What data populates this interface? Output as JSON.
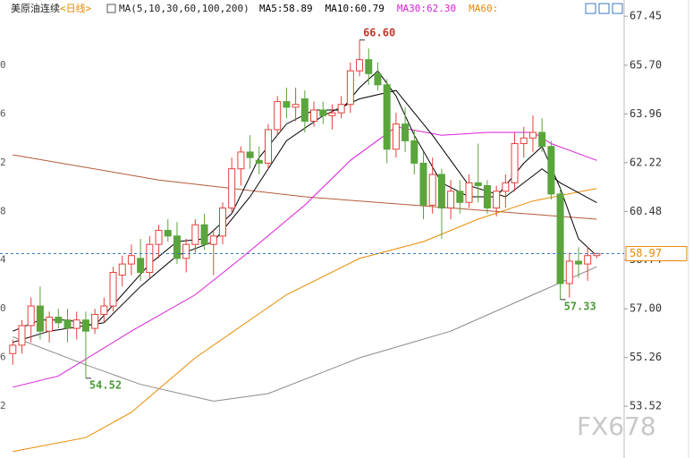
{
  "header": {
    "symbol": "美原油连续",
    "period": "<日线>",
    "ma_params": "MA(5,10,30,60,100,200)",
    "ma_values": [
      {
        "label": "MA5:58.89",
        "color": "#000000"
      },
      {
        "label": "MA10:60.79",
        "color": "#000000"
      },
      {
        "label": "MA30:62.30",
        "color": "#d81ed8"
      },
      {
        "label": "MA60:",
        "color": "#e88a00"
      }
    ]
  },
  "chart_data": {
    "type": "candlestick",
    "up_color": "#e5403a",
    "down_color": "#5aa53c",
    "open": [
      55.4,
      55.7,
      56.4,
      57.1,
      56.2,
      56.7,
      56.6,
      56.3,
      56.6,
      56.3,
      56.8,
      57.1,
      58.2,
      58.6,
      58.8,
      58.3,
      59.3,
      59.8,
      59.6,
      58.8,
      59.3,
      60.0,
      59.3,
      59.6,
      60.6,
      62.0,
      62.6,
      62.3,
      62.2,
      63.4,
      64.4,
      64.2,
      64.5,
      63.7,
      64.1,
      63.9,
      64.0,
      64.3,
      65.5,
      65.9,
      65.4,
      65.0,
      62.7,
      63.6,
      63.0,
      62.2,
      60.7,
      61.8,
      60.6,
      61.2,
      60.8,
      61.5,
      61.4,
      60.6,
      61.2,
      61.5,
      62.9,
      63.1,
      63.3,
      62.8,
      61.1,
      57.9,
      58.7,
      58.6,
      58.9
    ],
    "high": [
      55.9,
      56.6,
      57.4,
      57.8,
      56.9,
      57.0,
      57.0,
      56.9,
      56.9,
      57.0,
      57.4,
      58.5,
      58.9,
      59.3,
      59.5,
      59.6,
      60.0,
      60.2,
      60.1,
      59.5,
      60.2,
      60.4,
      59.8,
      60.8,
      62.4,
      62.8,
      63.2,
      62.8,
      63.6,
      64.6,
      64.9,
      64.9,
      64.8,
      64.4,
      64.4,
      64.3,
      64.6,
      65.8,
      66.6,
      66.3,
      65.8,
      65.2,
      64.0,
      64.2,
      63.4,
      62.6,
      62.4,
      62.0,
      61.6,
      61.6,
      61.8,
      62.9,
      61.6,
      61.4,
      61.8,
      63.3,
      63.5,
      63.9,
      63.8,
      63.0,
      61.3,
      59.0,
      59.2,
      59.2,
      59.0
    ],
    "low": [
      55.0,
      55.4,
      55.8,
      55.9,
      55.8,
      56.3,
      55.8,
      55.9,
      54.52,
      56.1,
      56.5,
      56.9,
      57.8,
      58.2,
      58.0,
      58.1,
      58.8,
      59.4,
      58.6,
      58.3,
      59.0,
      59.1,
      58.2,
      59.3,
      60.4,
      61.4,
      62.0,
      61.8,
      62.0,
      63.2,
      63.8,
      63.7,
      63.3,
      63.5,
      63.6,
      63.4,
      63.8,
      64.0,
      65.3,
      65.0,
      64.8,
      62.2,
      62.4,
      62.6,
      61.8,
      60.2,
      60.4,
      59.5,
      60.2,
      60.4,
      60.6,
      60.8,
      60.4,
      60.3,
      60.6,
      61.2,
      62.4,
      62.6,
      62.6,
      60.9,
      57.33,
      57.4,
      58.1,
      58.0,
      58.8
    ],
    "close": [
      55.7,
      56.4,
      57.1,
      56.2,
      56.7,
      56.5,
      56.3,
      56.6,
      56.2,
      56.8,
      57.1,
      58.3,
      58.6,
      58.9,
      58.3,
      59.3,
      59.8,
      59.6,
      58.8,
      59.3,
      60.0,
      59.3,
      59.6,
      60.6,
      62.0,
      62.6,
      62.4,
      62.2,
      63.4,
      64.4,
      64.2,
      64.3,
      63.7,
      64.1,
      63.9,
      64.0,
      64.3,
      65.5,
      65.9,
      65.4,
      65.0,
      62.7,
      63.6,
      63.0,
      62.2,
      60.7,
      61.8,
      60.6,
      61.2,
      60.8,
      61.5,
      61.4,
      60.6,
      61.2,
      61.5,
      62.9,
      63.1,
      63.3,
      62.8,
      61.1,
      57.9,
      58.7,
      58.6,
      58.9,
      58.97
    ],
    "xlim": [
      -1.4,
      67
    ],
    "ylim": [
      51.67,
      68.03
    ],
    "yticks": [
      67.45,
      65.7,
      63.96,
      62.22,
      60.48,
      58.74,
      57.0,
      55.26,
      53.52
    ],
    "ytick_labels": [
      "67.45",
      "65.70",
      "63.96",
      "62.22",
      "60.48",
      "58.74",
      "57.00",
      "55.26",
      "53.52"
    ],
    "left_tick_labels": [
      "0",
      "6",
      "2",
      "8",
      "4",
      "0",
      "6",
      "2"
    ],
    "series": [
      {
        "color": "#b35a3c",
        "x": [
          0,
          16,
          32,
          48,
          64
        ],
        "values": [
          62.5,
          61.6,
          61.0,
          60.6,
          60.2
        ]
      },
      {
        "color": "#8a8a8a",
        "x": [
          0,
          8,
          14,
          22,
          28,
          38,
          48,
          57,
          64
        ],
        "values": [
          56.0,
          55.0,
          54.3,
          53.7,
          53.97,
          55.25,
          56.2,
          57.5,
          58.5
        ]
      },
      {
        "color": "#e88a00",
        "x": [
          0,
          8,
          13,
          20,
          30,
          38,
          45,
          51,
          57,
          64
        ],
        "values": [
          51.9,
          52.4,
          53.3,
          55.25,
          57.5,
          58.8,
          59.4,
          60.2,
          60.85,
          61.3
        ]
      },
      {
        "color": "#d81ed8",
        "x": [
          0,
          5,
          13,
          20,
          25,
          32,
          37,
          42,
          47,
          52,
          57,
          59,
          64
        ],
        "values": [
          54.2,
          54.6,
          56.2,
          57.5,
          58.8,
          60.7,
          62.3,
          63.5,
          63.2,
          63.3,
          63.3,
          62.9,
          62.3
        ]
      },
      {
        "color": "#000000",
        "x": [
          0,
          4,
          8,
          10,
          14,
          18,
          22,
          26,
          30,
          34,
          38,
          42,
          46,
          50,
          54,
          58,
          60,
          64
        ],
        "values": [
          55.8,
          56.2,
          56.4,
          56.5,
          57.8,
          58.9,
          59.4,
          61.0,
          63.0,
          63.9,
          64.5,
          64.8,
          63.2,
          61.4,
          61.0,
          62.0,
          61.5,
          60.79
        ]
      },
      {
        "color": "#000000",
        "x": [
          0,
          3,
          6,
          9,
          12,
          15,
          18,
          21,
          24,
          27,
          30,
          33,
          36,
          38,
          40,
          42,
          44,
          47,
          50,
          53,
          56,
          58,
          60,
          62,
          64
        ],
        "values": [
          56.2,
          56.6,
          56.6,
          56.4,
          57.5,
          58.6,
          59.4,
          59.5,
          60.4,
          62.4,
          63.6,
          64.1,
          64.1,
          64.9,
          65.5,
          64.6,
          63.2,
          61.5,
          61.0,
          61.0,
          62.2,
          62.8,
          61.3,
          59.5,
          58.89
        ]
      }
    ],
    "annotations": [
      {
        "label": "66.60",
        "index": 38,
        "value": 66.6,
        "color": "#c0392b",
        "side": "high"
      },
      {
        "label": "54.52",
        "index": 8,
        "value": 54.52,
        "color": "#4c9a3a",
        "side": "low"
      },
      {
        "label": "57.33",
        "index": 60,
        "value": 57.33,
        "color": "#4c9a3a",
        "side": "low"
      }
    ],
    "last_price": {
      "value": 58.97,
      "label": "58.97",
      "color": "#e88a00"
    },
    "watermark": "FX678"
  }
}
